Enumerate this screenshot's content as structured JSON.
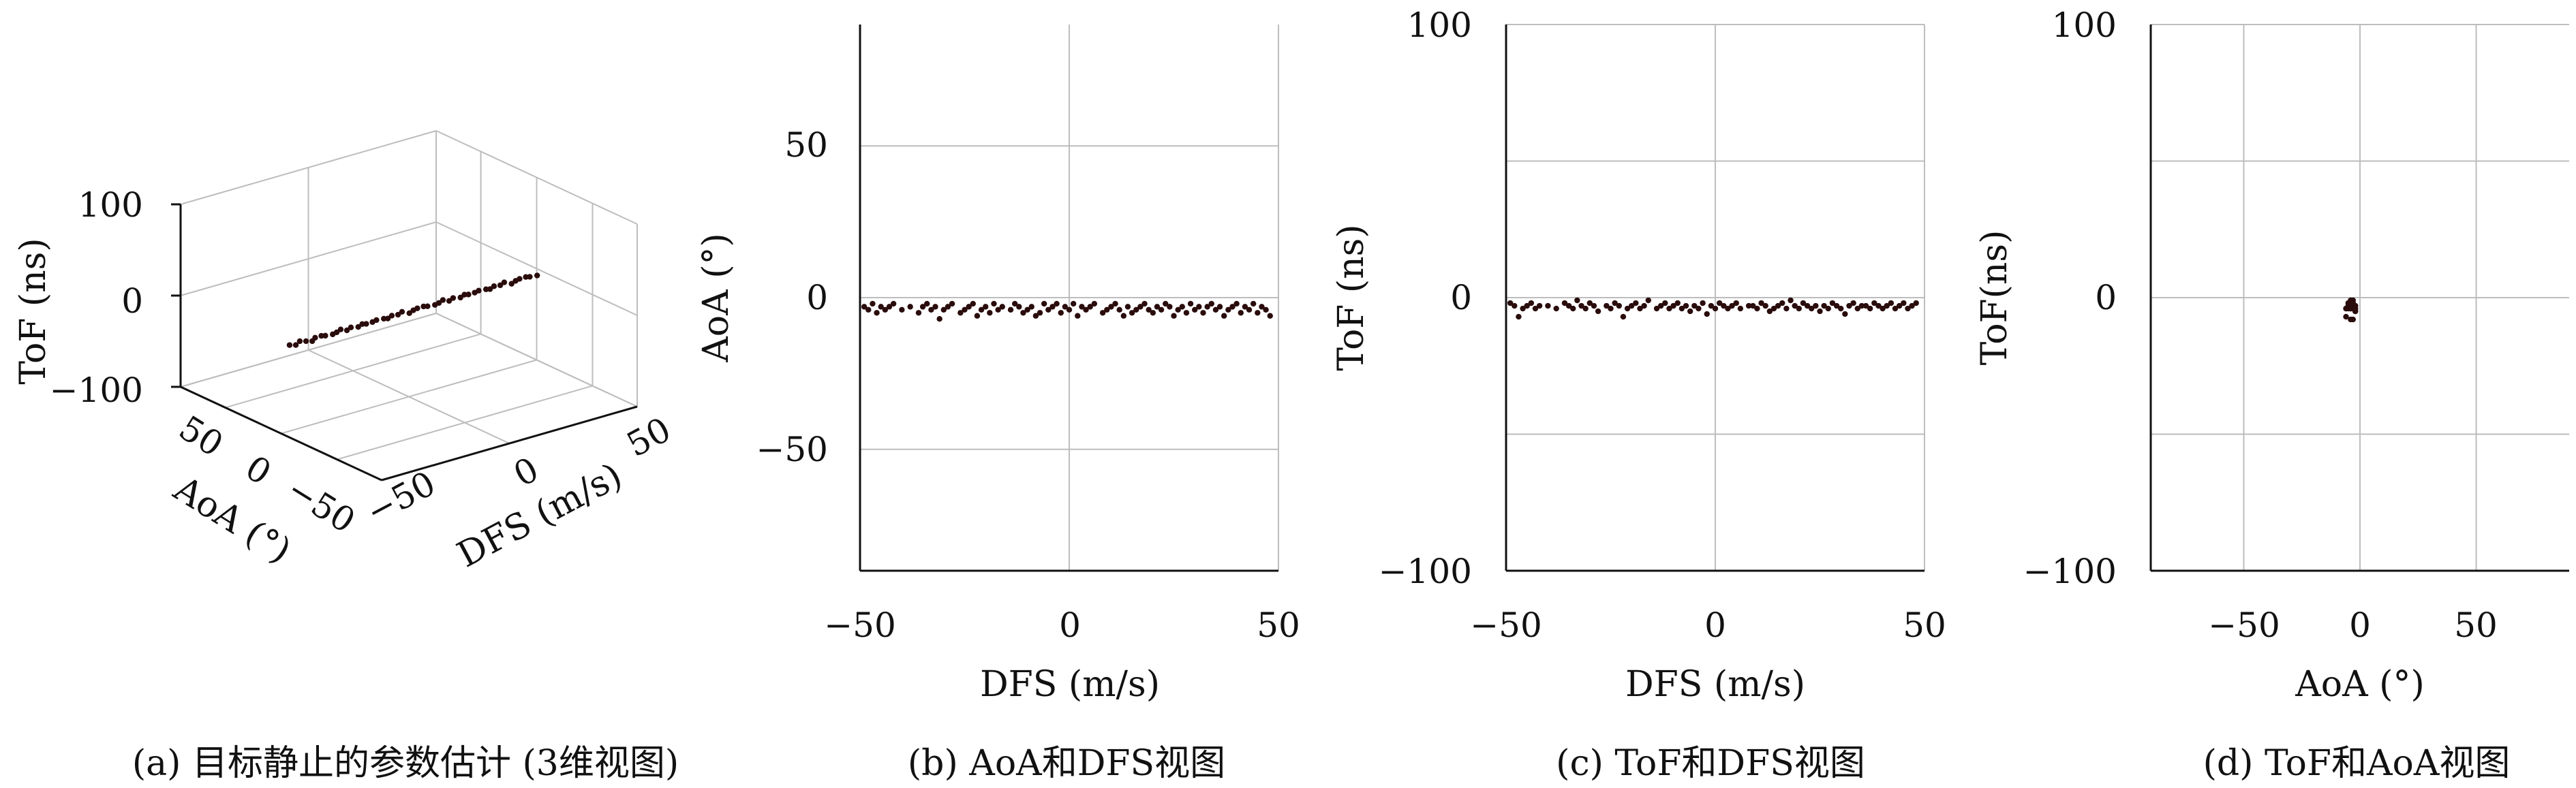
{
  "captions": {
    "a": "(a) 目标静止的参数估计 (3维视图)",
    "b": "(b) AoA和DFS视图",
    "c": "(c) ToF和DFS视图",
    "d": "(d) ToF和AoA视图"
  },
  "chart_data": [
    {
      "id": "a",
      "type": "scatter",
      "projection": "3d",
      "xlabel": "DFS (m/s)",
      "ylabel": "AoA (°)",
      "zlabel": "ToF (ns)",
      "xticks": [
        "−50",
        "0",
        "50"
      ],
      "yticks": [
        "50",
        "0",
        "−50"
      ],
      "zticks": [
        "100",
        "0",
        "−100"
      ],
      "xlim": [
        -50,
        50
      ],
      "ylim": [
        -90,
        90
      ],
      "zlim": [
        -100,
        100
      ],
      "grid": true,
      "points": [
        [
          -48,
          -3,
          -3
        ],
        [
          -46,
          -4,
          -4
        ],
        [
          -44,
          -3,
          -2
        ],
        [
          -42,
          -4,
          -3
        ],
        [
          -40,
          -5,
          -4
        ],
        [
          -38,
          -3,
          -3
        ],
        [
          -36,
          -4,
          -2
        ],
        [
          -34,
          -3,
          -4
        ],
        [
          -32,
          -5,
          -3
        ],
        [
          -30,
          -4,
          -3
        ],
        [
          -28,
          -3,
          -2
        ],
        [
          -26,
          -4,
          -4
        ],
        [
          -24,
          -3,
          -3
        ],
        [
          -22,
          -5,
          -3
        ],
        [
          -20,
          -4,
          -2
        ],
        [
          -18,
          -3,
          -4
        ],
        [
          -16,
          -4,
          -3
        ],
        [
          -14,
          -3,
          -3
        ],
        [
          -12,
          -5,
          -2
        ],
        [
          -10,
          -4,
          -4
        ],
        [
          -8,
          -3,
          -3
        ],
        [
          -6,
          -4,
          -3
        ],
        [
          -4,
          -3,
          -2
        ],
        [
          -2,
          -5,
          -4
        ],
        [
          0,
          -4,
          -3
        ],
        [
          2,
          -3,
          -3
        ],
        [
          4,
          -4,
          -2
        ],
        [
          6,
          -3,
          -4
        ],
        [
          8,
          -5,
          -3
        ],
        [
          10,
          -4,
          -3
        ],
        [
          12,
          -3,
          -2
        ],
        [
          14,
          -4,
          -4
        ],
        [
          16,
          -3,
          -3
        ],
        [
          18,
          -5,
          -3
        ],
        [
          20,
          -4,
          -2
        ],
        [
          22,
          -3,
          -4
        ],
        [
          24,
          -4,
          -3
        ],
        [
          26,
          -3,
          -3
        ],
        [
          28,
          -5,
          -2
        ],
        [
          30,
          -4,
          -4
        ],
        [
          32,
          -3,
          -3
        ],
        [
          34,
          -4,
          -3
        ],
        [
          36,
          -3,
          -2
        ],
        [
          38,
          -5,
          -4
        ],
        [
          40,
          -4,
          -3
        ],
        [
          42,
          -3,
          -3
        ],
        [
          44,
          -4,
          -2
        ],
        [
          46,
          -3,
          -4
        ],
        [
          48,
          -5,
          -3
        ]
      ]
    },
    {
      "id": "b",
      "type": "scatter",
      "xlabel": "DFS (m/s)",
      "ylabel": "AoA (°)",
      "xlim": [
        -50,
        50
      ],
      "ylim": [
        -90,
        90
      ],
      "xticks": [
        -50,
        0,
        50
      ],
      "yticks": [
        50,
        0,
        -50
      ],
      "xtick_labels": [
        "−50",
        "0",
        "50"
      ],
      "ytick_labels": [
        "50",
        "0",
        "−50"
      ],
      "grid": true,
      "x": [
        -49,
        -48,
        -47,
        -46,
        -45,
        -44,
        -43,
        -42,
        -40,
        -38,
        -36,
        -35,
        -34,
        -33,
        -32,
        -31,
        -30,
        -29,
        -28,
        -26,
        -25,
        -24,
        -23,
        -22,
        -21,
        -20,
        -19,
        -18,
        -17,
        -16,
        -14,
        -13,
        -12,
        -11,
        -10,
        -9,
        -8,
        -7,
        -6,
        -5,
        -4,
        -3,
        -2,
        -1,
        0,
        1,
        2,
        3,
        4,
        5,
        6,
        8,
        9,
        10,
        11,
        12,
        13,
        14,
        15,
        16,
        17,
        18,
        19,
        20,
        21,
        22,
        23,
        24,
        25,
        26,
        27,
        28,
        29,
        30,
        31,
        32,
        33,
        34,
        35,
        36,
        37,
        38,
        39,
        40,
        41,
        42,
        43,
        44,
        45,
        46,
        47,
        48
      ],
      "y": [
        -3,
        -4,
        -2,
        -5,
        -3,
        -4,
        -3,
        -2,
        -4,
        -3,
        -5,
        -3,
        -2,
        -4,
        -3,
        -7,
        -4,
        -3,
        -2,
        -5,
        -4,
        -3,
        -2,
        -6,
        -4,
        -3,
        -5,
        -2,
        -4,
        -3,
        -4,
        -2,
        -3,
        -5,
        -4,
        -3,
        -6,
        -5,
        -2,
        -4,
        -3,
        -2,
        -5,
        -3,
        -4,
        -2,
        -6,
        -3,
        -4,
        -3,
        -2,
        -5,
        -4,
        -3,
        -2,
        -4,
        -6,
        -3,
        -5,
        -4,
        -3,
        -2,
        -4,
        -5,
        -3,
        -4,
        -2,
        -3,
        -6,
        -4,
        -3,
        -5,
        -2,
        -4,
        -3,
        -5,
        -3,
        -2,
        -4,
        -3,
        -6,
        -4,
        -3,
        -2,
        -5,
        -3,
        -4,
        -2,
        -5,
        -3,
        -4,
        -6
      ]
    },
    {
      "id": "c",
      "type": "scatter",
      "xlabel": "DFS (m/s)",
      "ylabel": "ToF (ns)",
      "xlim": [
        -50,
        50
      ],
      "ylim": [
        -100,
        100
      ],
      "xticks": [
        -50,
        0,
        50
      ],
      "yticks": [
        100,
        0,
        -100
      ],
      "xtick_labels": [
        "−50",
        "0",
        "50"
      ],
      "ytick_labels": [
        "100",
        "0",
        "−100"
      ],
      "grid": true,
      "x": [
        -49,
        -48,
        -47,
        -46,
        -45,
        -44,
        -43,
        -42,
        -40,
        -38,
        -36,
        -35,
        -34,
        -33,
        -32,
        -31,
        -30,
        -29,
        -28,
        -26,
        -25,
        -24,
        -23,
        -22,
        -21,
        -20,
        -19,
        -18,
        -17,
        -16,
        -14,
        -13,
        -12,
        -11,
        -10,
        -9,
        -8,
        -7,
        -6,
        -5,
        -4,
        -3,
        -2,
        -1,
        0,
        1,
        2,
        3,
        4,
        5,
        6,
        8,
        9,
        10,
        11,
        12,
        13,
        14,
        15,
        16,
        17,
        18,
        19,
        20,
        21,
        22,
        23,
        24,
        25,
        26,
        27,
        28,
        29,
        30,
        31,
        32,
        33,
        34,
        35,
        36,
        37,
        38,
        39,
        40,
        41,
        42,
        43,
        44,
        45,
        46,
        47,
        48
      ],
      "y": [
        -2,
        -3,
        -7,
        -4,
        -3,
        -2,
        -4,
        -3,
        -3,
        -4,
        -2,
        -3,
        -4,
        -1,
        -3,
        -4,
        -2,
        -3,
        -5,
        -3,
        -4,
        -2,
        -3,
        -7,
        -4,
        -3,
        -2,
        -4,
        -3,
        -1,
        -4,
        -3,
        -2,
        -4,
        -3,
        -2,
        -4,
        -3,
        -5,
        -3,
        -4,
        -2,
        -6,
        -3,
        -4,
        -2,
        -3,
        -4,
        -3,
        -2,
        -4,
        -3,
        -3,
        -4,
        -2,
        -3,
        -5,
        -4,
        -3,
        -2,
        -4,
        -1,
        -3,
        -4,
        -2,
        -3,
        -4,
        -3,
        -5,
        -3,
        -4,
        -2,
        -3,
        -4,
        -6,
        -3,
        -2,
        -4,
        -3,
        -3,
        -4,
        -2,
        -3,
        -4,
        -3,
        -2,
        -4,
        -3,
        -2,
        -4,
        -3,
        -2
      ]
    },
    {
      "id": "d",
      "type": "scatter",
      "xlabel": "AoA (°)",
      "ylabel": "ToF(ns)",
      "xlim": [
        -90,
        90
      ],
      "ylim": [
        -100,
        100
      ],
      "xticks": [
        -50,
        0,
        50
      ],
      "yticks": [
        100,
        0,
        -100
      ],
      "xtick_labels": [
        "−50",
        "0",
        "50"
      ],
      "ytick_labels": [
        "100",
        "0",
        "−100"
      ],
      "grid": true,
      "x": [
        -3,
        -4,
        -2,
        -5,
        -3,
        -4,
        -3,
        -2,
        -4,
        -3,
        -5,
        -3,
        -2,
        -4,
        -3,
        -6,
        -4,
        -3,
        -2,
        -5,
        -4,
        -3,
        -2,
        -6,
        -4,
        -3,
        -5,
        -2,
        -4,
        -3,
        -4,
        -2,
        -3,
        -5,
        -4,
        -3,
        -6,
        -5,
        -2,
        -4,
        -3,
        -2
      ],
      "y": [
        -2,
        -3,
        -4,
        -3,
        -2,
        -4,
        -3,
        -5,
        -3,
        -4,
        -2,
        -3,
        -4,
        -1,
        -3,
        -4,
        -2,
        -3,
        -5,
        -3,
        -4,
        -2,
        -3,
        -7,
        -4,
        -3,
        -2,
        -4,
        -3,
        -1,
        -4,
        -3,
        -2,
        -4,
        -3,
        -2,
        -4,
        -3,
        -5,
        -8,
        -8,
        -3
      ]
    }
  ]
}
